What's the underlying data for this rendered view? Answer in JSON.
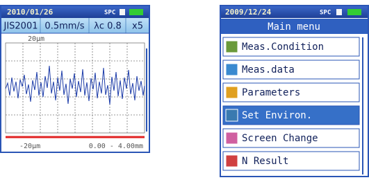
{
  "left_screen": {
    "date": "2010/01/26",
    "status": "SPC",
    "settings": [
      "JIS2001",
      "0.5mm/s",
      "λc 0.8",
      "x5"
    ],
    "plot": {
      "top_label": "20μm",
      "bottom_label": "-20μm",
      "range": "0.00 - 4.00mm"
    }
  },
  "right_screen": {
    "date": "2009/12/24",
    "status": "SPC",
    "title": "Main menu",
    "menu_items": [
      "Meas.Condition",
      "Meas.data",
      "Parameters",
      "Set Environ.",
      "Screen Change",
      "N Result"
    ],
    "selected_item": "Set Environ."
  }
}
